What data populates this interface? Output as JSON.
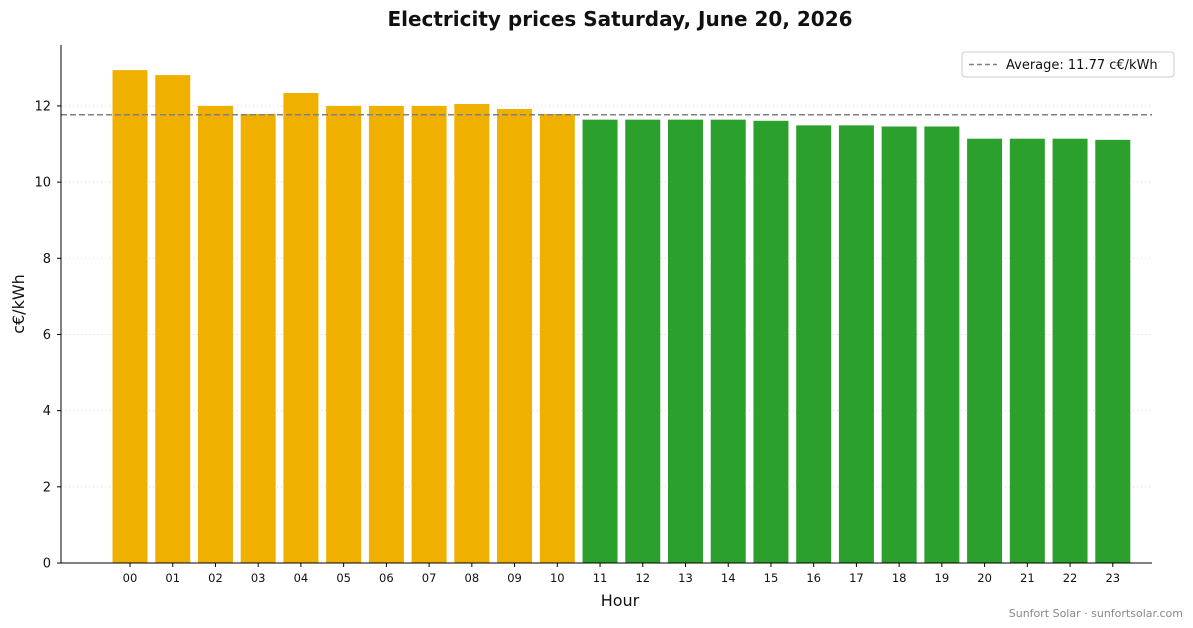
{
  "chart_data": {
    "type": "bar",
    "title": "Electricity prices Saturday, June 20, 2026",
    "xlabel": "Hour",
    "ylabel": "c€/kWh",
    "categories": [
      "00",
      "01",
      "02",
      "03",
      "04",
      "05",
      "06",
      "07",
      "08",
      "09",
      "10",
      "11",
      "12",
      "13",
      "14",
      "15",
      "16",
      "17",
      "18",
      "19",
      "20",
      "21",
      "22",
      "23"
    ],
    "values": [
      12.94,
      12.81,
      12.0,
      11.79,
      12.34,
      12.0,
      12.0,
      12.0,
      12.05,
      11.92,
      11.79,
      11.64,
      11.64,
      11.64,
      11.64,
      11.61,
      11.49,
      11.49,
      11.46,
      11.46,
      11.14,
      11.14,
      11.14,
      11.11
    ],
    "ylim": [
      0,
      13.6
    ],
    "yticks": [
      0,
      2,
      4,
      6,
      8,
      10,
      12
    ],
    "grid": "horizontal-dotted",
    "average": {
      "value": 11.77,
      "label": "Average: 11.77 c€/kWh",
      "color": "#808080"
    },
    "legend": {
      "position": "top-right"
    },
    "colors": {
      "above_average": "#f0b000",
      "below_average": "#2ca02c"
    },
    "credit": "Sunfort Solar · sunfortsolar.com"
  }
}
